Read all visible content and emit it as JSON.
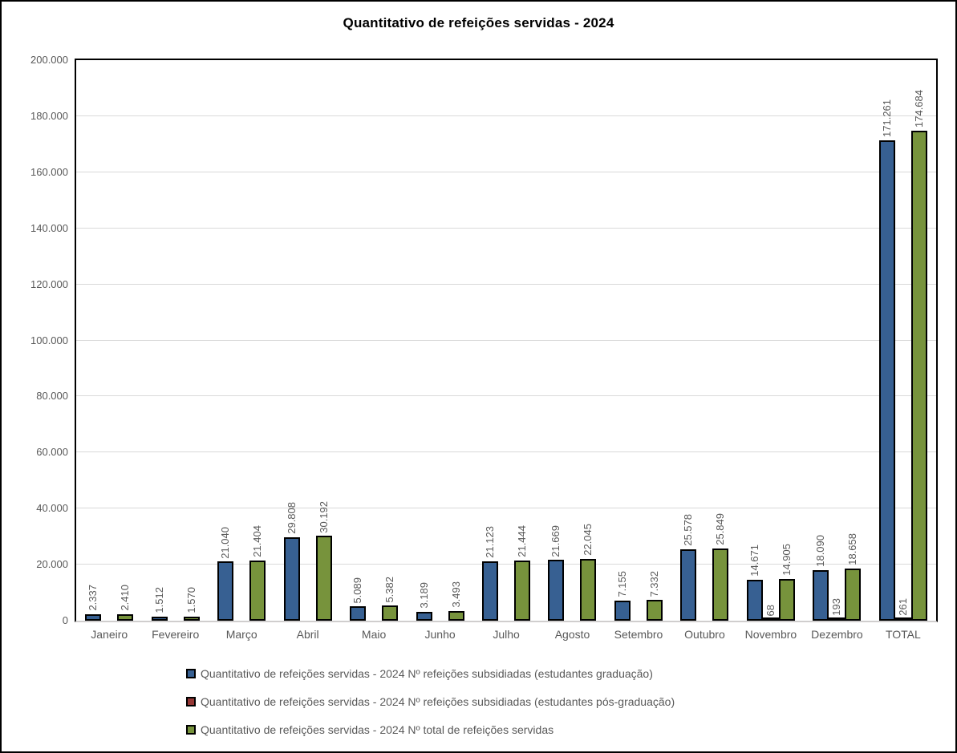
{
  "chart_data": {
    "type": "bar",
    "title": "Quantitativo de refeições servidas - 2024",
    "categories": [
      "Janeiro",
      "Fevereiro",
      "Março",
      "Abril",
      "Maio",
      "Junho",
      "Julho",
      "Agosto",
      "Setembro",
      "Outubro",
      "Novembro",
      "Dezembro",
      "TOTAL"
    ],
    "series": [
      {
        "name": "Quantitativo de refeições servidas - 2024 Nº refeições subsidiadas (estudantes graduação)",
        "color": "#376092",
        "values": [
          2337,
          1512,
          21040,
          29808,
          5089,
          3189,
          21123,
          21669,
          7155,
          25578,
          14671,
          18090,
          171261
        ]
      },
      {
        "name": "Quantitativo de refeições servidas - 2024 Nº refeições subsidiadas (estudantes pós-graduação)",
        "color": "#953735",
        "values": [
          0,
          0,
          0,
          0,
          0,
          0,
          0,
          0,
          0,
          0,
          68,
          193,
          261
        ]
      },
      {
        "name": "Quantitativo de refeições servidas - 2024 Nº total de refeições servidas",
        "color": "#77933C",
        "values": [
          2410,
          1570,
          21404,
          30192,
          5382,
          3493,
          21444,
          22045,
          7332,
          25849,
          14905,
          18658,
          174684
        ]
      }
    ],
    "ylim": [
      0,
      200000
    ],
    "ytick_step": 20000,
    "ytick_labels": [
      "0",
      "20.000",
      "40.000",
      "60.000",
      "80.000",
      "100.000",
      "120.000",
      "140.000",
      "160.000",
      "180.000",
      "200.000"
    ],
    "grid": true,
    "legend_position": "bottom",
    "number_format": "thousands-dot",
    "data_labels": "rotated-vertical, shown only for non-zero values"
  },
  "colors": {
    "text_gray": "#595959",
    "gridline": "#D9D9D9",
    "axis_baseline": "#D0CECE",
    "bar_border": "#000000",
    "frame_border": "#000000"
  }
}
